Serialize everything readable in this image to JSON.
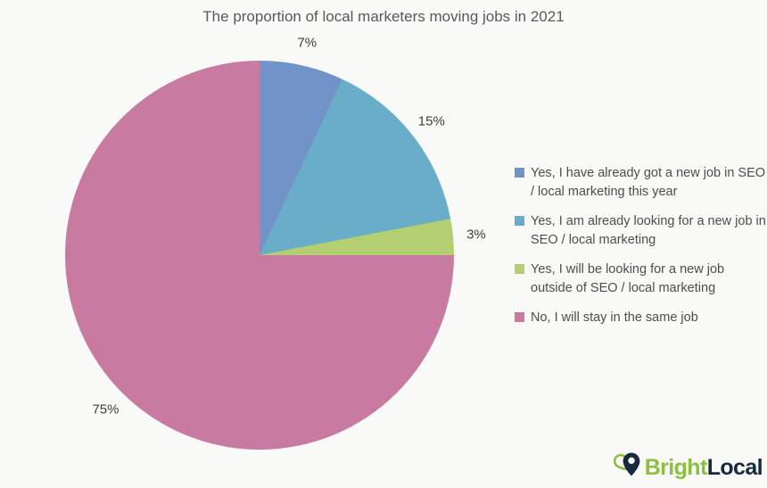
{
  "page": {
    "background_color": "#f9f9f7"
  },
  "chart_data": {
    "type": "pie",
    "title": "The proportion of local marketers moving jobs in 2021",
    "legend_position": "right",
    "start_angle_deg": 0,
    "direction": "clockwise",
    "series": [
      {
        "label": "Yes, I have already got a new job in SEO / local marketing this year",
        "value": 7,
        "display_value": "7%",
        "color": "#7293c8"
      },
      {
        "label": "Yes, I am already looking for a new job in SEO / local marketing",
        "value": 15,
        "display_value": "15%",
        "color": "#69adc9"
      },
      {
        "label": "Yes, I will be looking for a new job outside of SEO / local marketing",
        "value": 3,
        "display_value": "3%",
        "color": "#b4cf72"
      },
      {
        "label": "No, I will stay in the same job",
        "value": 75,
        "display_value": "75%",
        "color": "#c87aa0"
      }
    ]
  },
  "logo": {
    "text_primary": "Bright",
    "text_secondary": "Local",
    "primary_color": "#8bbf3f",
    "secondary_color": "#17293e"
  }
}
